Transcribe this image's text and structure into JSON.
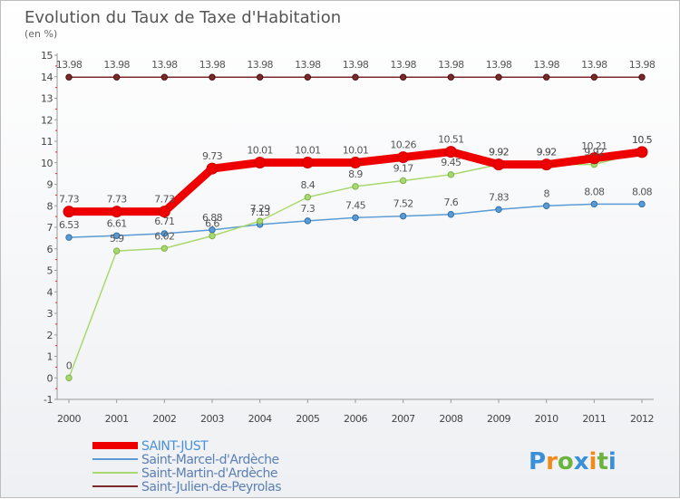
{
  "title": "Evolution du Taux de Taxe d'Habitation",
  "subtitle": "(en %)",
  "logo": {
    "text": "Proxiti",
    "colors": [
      "#3a8fd9",
      "#f08a1c",
      "#6db33f",
      "#3a8fd9",
      "#f08a1c",
      "#6db33f",
      "#3a8fd9"
    ]
  },
  "chart_data": {
    "type": "line",
    "x": [
      "2000",
      "2001",
      "2002",
      "2003",
      "2004",
      "2005",
      "2006",
      "2007",
      "2008",
      "2009",
      "2010",
      "2011",
      "2012"
    ],
    "ylim": [
      -1,
      15
    ],
    "yticks": [
      "-1",
      "0",
      "1",
      "2",
      "3",
      "4",
      "5",
      "6",
      "7",
      "8",
      "9",
      "10",
      "11",
      "12",
      "13",
      "14",
      "15"
    ],
    "grid": false,
    "legend_position": "bottom-left",
    "series": [
      {
        "name": "SAINT-JUST",
        "color": "#ee0000",
        "width": 9,
        "values": [
          7.73,
          7.73,
          7.73,
          9.73,
          10.01,
          10.01,
          10.01,
          10.26,
          10.51,
          9.92,
          9.92,
          10.21,
          10.5
        ],
        "labels": [
          "7.73",
          "7.73",
          "7.73",
          "9.73",
          "10.01",
          "10.01",
          "10.01",
          "10.26",
          "10.51",
          "9.92",
          "9.92",
          "10.21",
          "10.5"
        ]
      },
      {
        "name": "Saint-Marcel-d'Ardèche",
        "color": "#5b9bd5",
        "width": 1.5,
        "values": [
          6.53,
          6.61,
          6.71,
          6.88,
          7.13,
          7.3,
          7.45,
          7.52,
          7.6,
          7.83,
          8,
          8.08,
          8.08
        ],
        "labels": [
          "6.53",
          "6.61",
          "6.71",
          "6.88",
          "7.13",
          "7.3",
          "7.45",
          "7.52",
          "7.6",
          "7.83",
          "8",
          "8.08",
          "8.08"
        ]
      },
      {
        "name": "Saint-Martin-d'Ardèche",
        "color": "#a8d86e",
        "width": 1.5,
        "values": [
          0,
          5.9,
          6.02,
          6.6,
          7.29,
          8.4,
          8.9,
          9.17,
          9.45,
          9.92,
          9.92,
          9.92,
          10.5
        ],
        "labels": [
          "0",
          "5.9",
          "6.02",
          "6.6",
          "7.29",
          "8.4",
          "8.9",
          "9.17",
          "9.45",
          "9.92",
          "9.92",
          "9.92",
          "10.5"
        ]
      },
      {
        "name": "Saint-Julien-de-Peyrolas",
        "color": "#7b2a2a",
        "width": 1.5,
        "values": [
          13.98,
          13.98,
          13.98,
          13.98,
          13.98,
          13.98,
          13.98,
          13.98,
          13.98,
          13.98,
          13.98,
          13.98,
          13.98
        ],
        "labels": [
          "13.98",
          "13.98",
          "13.98",
          "13.98",
          "13.98",
          "13.98",
          "13.98",
          "13.98",
          "13.98",
          "13.98",
          "13.98",
          "13.98",
          "13.98"
        ]
      }
    ]
  }
}
